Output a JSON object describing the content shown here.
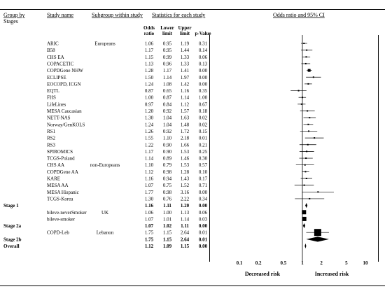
{
  "chart_data": {
    "type": "forest",
    "headers": {
      "group": "Group by",
      "group2": "Stages",
      "study": "Study name",
      "subgroup": "Subgroup within study",
      "stats": "Statistics for each study",
      "plot": "Odds ratio and 95% CI",
      "col_or_1": "Odds",
      "col_or_2": "ratio",
      "col_ll_1": "Lower",
      "col_ll_2": "limit",
      "col_ul_1": "Upper",
      "col_ul_2": "limit",
      "col_p": "p-Value"
    },
    "rows": [
      {
        "group": "",
        "study": "ARIC",
        "subgroup": "Europeans",
        "or": "1.06",
        "ll": "0.95",
        "ul": "1.19",
        "p": "0.31",
        "kind": "study",
        "w": 2
      },
      {
        "group": "",
        "study": "B58",
        "subgroup": "",
        "or": "1.17",
        "ll": "0.95",
        "ul": "1.44",
        "p": "0.14",
        "kind": "study",
        "w": 2
      },
      {
        "group": "",
        "study": "CHS EA",
        "subgroup": "",
        "or": "1.15",
        "ll": "0.99",
        "ul": "1.33",
        "p": "0.06",
        "kind": "study",
        "w": 2
      },
      {
        "group": "",
        "study": "COPACETIC",
        "subgroup": "",
        "or": "1.13",
        "ll": "0.96",
        "ul": "1.33",
        "p": "0.13",
        "kind": "study",
        "w": 2
      },
      {
        "group": "",
        "study": "COPDGene NHW",
        "subgroup": "",
        "or": "1.28",
        "ll": "1.17",
        "ul": "1.41",
        "p": "0.00",
        "kind": "study",
        "w": 4
      },
      {
        "group": "",
        "study": "ECLIPSE",
        "subgroup": "",
        "or": "1.50",
        "ll": "1.14",
        "ul": "1.97",
        "p": "0.00",
        "kind": "study",
        "w": 2
      },
      {
        "group": "",
        "study": "EOCOPD, ICGN",
        "subgroup": "",
        "or": "1.24",
        "ll": "1.08",
        "ul": "1.42",
        "p": "0.00",
        "kind": "study",
        "w": 2
      },
      {
        "group": "",
        "study": "EQTL",
        "subgroup": "",
        "or": "0.87",
        "ll": "0.65",
        "ul": "1.16",
        "p": "0.35",
        "kind": "study",
        "w": 2
      },
      {
        "group": "",
        "study": "FHS",
        "subgroup": "",
        "or": "1.00",
        "ll": "0.87",
        "ul": "1.14",
        "p": "1.00",
        "kind": "study",
        "w": 2
      },
      {
        "group": "",
        "study": "LifeLines",
        "subgroup": "",
        "or": "0.97",
        "ll": "0.84",
        "ul": "1.12",
        "p": "0.67",
        "kind": "study",
        "w": 2
      },
      {
        "group": "",
        "study": "MESA Caucasian",
        "subgroup": "",
        "or": "1.20",
        "ll": "0.92",
        "ul": "1.57",
        "p": "0.18",
        "kind": "study",
        "w": 2
      },
      {
        "group": "",
        "study": "NETT-NAS",
        "subgroup": "",
        "or": "1.30",
        "ll": "1.04",
        "ul": "1.63",
        "p": "0.02",
        "kind": "study",
        "w": 2
      },
      {
        "group": "",
        "study": "Norway/GenKOLS",
        "subgroup": "",
        "or": "1.24",
        "ll": "1.04",
        "ul": "1.48",
        "p": "0.02",
        "kind": "study",
        "w": 2
      },
      {
        "group": "",
        "study": "RS1",
        "subgroup": "",
        "or": "1.26",
        "ll": "0.92",
        "ul": "1.72",
        "p": "0.15",
        "kind": "study",
        "w": 2
      },
      {
        "group": "",
        "study": "RS2",
        "subgroup": "",
        "or": "1.55",
        "ll": "1.10",
        "ul": "2.18",
        "p": "0.01",
        "kind": "study",
        "w": 2
      },
      {
        "group": "",
        "study": "RS3",
        "subgroup": "",
        "or": "1.22",
        "ll": "0.90",
        "ul": "1.66",
        "p": "0.21",
        "kind": "study",
        "w": 2
      },
      {
        "group": "",
        "study": "SPIROMICS",
        "subgroup": "",
        "or": "1.17",
        "ll": "0.90",
        "ul": "1.53",
        "p": "0.25",
        "kind": "study",
        "w": 2
      },
      {
        "group": "",
        "study": "TCGS-Poland",
        "subgroup": "",
        "or": "1.14",
        "ll": "0.89",
        "ul": "1.46",
        "p": "0.30",
        "kind": "study",
        "w": 2
      },
      {
        "group": "",
        "study": "CHS AA",
        "subgroup": "non-Europeans",
        "or": "1.10",
        "ll": "0.79",
        "ul": "1.53",
        "p": "0.57",
        "kind": "study",
        "w": 2
      },
      {
        "group": "",
        "study": "COPDGene AA",
        "subgroup": "",
        "or": "1.12",
        "ll": "0.98",
        "ul": "1.28",
        "p": "0.10",
        "kind": "study",
        "w": 2
      },
      {
        "group": "",
        "study": "KARE",
        "subgroup": "",
        "or": "1.16",
        "ll": "0.94",
        "ul": "1.43",
        "p": "0.17",
        "kind": "study",
        "w": 2
      },
      {
        "group": "",
        "study": "MESA AA",
        "subgroup": "",
        "or": "1.07",
        "ll": "0.75",
        "ul": "1.52",
        "p": "0.71",
        "kind": "study",
        "w": 2
      },
      {
        "group": "",
        "study": "MESA Hispanic",
        "subgroup": "",
        "or": "1.77",
        "ll": "0.98",
        "ul": "3.16",
        "p": "0.00",
        "kind": "study",
        "w": 2
      },
      {
        "group": "",
        "study": "TCGS-Korea",
        "subgroup": "",
        "or": "1.30",
        "ll": "0.76",
        "ul": "2.22",
        "p": "0.34",
        "kind": "study",
        "w": 2
      },
      {
        "group": "Stage 1",
        "study": "",
        "subgroup": "",
        "or": "1.16",
        "ll": "1.11",
        "ul": "1.20",
        "p": "0.00",
        "kind": "summary",
        "w": 4
      },
      {
        "group": "",
        "study": "bileve-neverSmoker",
        "subgroup": "UK",
        "or": "1.06",
        "ll": "1.00",
        "ul": "1.13",
        "p": "0.06",
        "kind": "study",
        "w": 6
      },
      {
        "group": "",
        "study": "bileve-smoker",
        "subgroup": "",
        "or": "1.07",
        "ll": "1.01",
        "ul": "1.14",
        "p": "0.03",
        "kind": "study",
        "w": 6
      },
      {
        "group": "Stage 2a",
        "study": "",
        "subgroup": "",
        "or": "1.07",
        "ll": "1.02",
        "ul": "1.11",
        "p": "0.00",
        "kind": "summary",
        "w": 4
      },
      {
        "group": "",
        "study": "COPD-Leb",
        "subgroup": "Lebanon",
        "or": "1.75",
        "ll": "1.15",
        "ul": "2.64",
        "p": "0.01",
        "kind": "study",
        "w": 10
      },
      {
        "group": "Stage 2b",
        "study": "",
        "subgroup": "",
        "or": "1.75",
        "ll": "1.15",
        "ul": "2.64",
        "p": "0.01",
        "kind": "summary",
        "w": 4
      },
      {
        "group": "Overall",
        "study": "",
        "subgroup": "",
        "or": "1.12",
        "ll": "1.09",
        "ul": "1.15",
        "p": "0.00",
        "kind": "summary",
        "w": 4
      }
    ],
    "x_axis": {
      "scale": "log",
      "ticks": [
        0.1,
        0.2,
        0.5,
        1,
        2,
        5,
        10
      ],
      "tick_labels": [
        "0.1",
        "0.2",
        "0.5",
        "1",
        "2",
        "5",
        "10"
      ],
      "xlim": [
        0.1,
        10
      ],
      "reference_line": 1
    },
    "footer_left": "Decreased risk",
    "footer_right": "Increased risk"
  }
}
